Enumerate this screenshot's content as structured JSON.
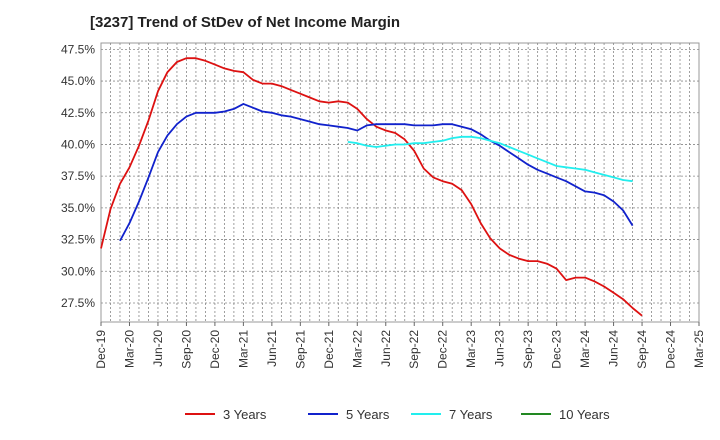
{
  "chart_data": {
    "type": "line",
    "title": "[3237]  Trend of StDev of Net Income Margin",
    "xlabel": "",
    "ylabel": "",
    "ylim": [
      26.0,
      48.0
    ],
    "yticks": [
      "47.5%",
      "45.0%",
      "42.5%",
      "40.0%",
      "37.5%",
      "35.0%",
      "32.5%",
      "30.0%",
      "27.5%"
    ],
    "x_tick_labels": [
      "Dec-19",
      "Mar-20",
      "Jun-20",
      "Sep-20",
      "Dec-20",
      "Mar-21",
      "Jun-21",
      "Sep-21",
      "Dec-21",
      "Mar-22",
      "Jun-22",
      "Sep-22",
      "Dec-22",
      "Mar-23",
      "Jun-23",
      "Sep-23",
      "Dec-23",
      "Mar-24",
      "Jun-24",
      "Sep-24",
      "Dec-24",
      "Mar-25"
    ],
    "grid": true,
    "legend_position": "bottom",
    "series": [
      {
        "name": "3 Years",
        "color": "#dd1111",
        "values": [
          [
            0,
            31.8
          ],
          [
            1,
            34.9
          ],
          [
            2,
            36.9
          ],
          [
            3,
            38.2
          ],
          [
            4,
            39.9
          ],
          [
            5,
            41.9
          ],
          [
            6,
            44.2
          ],
          [
            7,
            45.7
          ],
          [
            8,
            46.5
          ],
          [
            9,
            46.8
          ],
          [
            10,
            46.8
          ],
          [
            11,
            46.6
          ],
          [
            12,
            46.3
          ],
          [
            13,
            46.0
          ],
          [
            14,
            45.8
          ],
          [
            15,
            45.7
          ],
          [
            16,
            45.1
          ],
          [
            17,
            44.8
          ],
          [
            18,
            44.8
          ],
          [
            19,
            44.6
          ],
          [
            20,
            44.3
          ],
          [
            21,
            44.0
          ],
          [
            22,
            43.7
          ],
          [
            23,
            43.4
          ],
          [
            24,
            43.3
          ],
          [
            25,
            43.4
          ],
          [
            26,
            43.3
          ],
          [
            27,
            42.8
          ],
          [
            28,
            42.0
          ],
          [
            29,
            41.4
          ],
          [
            30,
            41.1
          ],
          [
            31,
            40.9
          ],
          [
            32,
            40.4
          ],
          [
            33,
            39.5
          ],
          [
            34,
            38.1
          ],
          [
            35,
            37.4
          ],
          [
            36,
            37.1
          ],
          [
            37,
            36.9
          ],
          [
            38,
            36.4
          ],
          [
            39,
            35.3
          ],
          [
            40,
            33.8
          ],
          [
            41,
            32.6
          ],
          [
            42,
            31.8
          ],
          [
            43,
            31.3
          ],
          [
            44,
            31.0
          ],
          [
            45,
            30.8
          ],
          [
            46,
            30.8
          ],
          [
            47,
            30.6
          ],
          [
            48,
            30.2
          ],
          [
            49,
            29.3
          ],
          [
            50,
            29.5
          ],
          [
            51,
            29.5
          ],
          [
            52,
            29.2
          ],
          [
            53,
            28.8
          ],
          [
            54,
            28.3
          ],
          [
            55,
            27.8
          ],
          [
            56,
            27.1
          ],
          [
            57,
            26.5
          ]
        ]
      },
      {
        "name": "5 Years",
        "color": "#1122cc",
        "values": [
          [
            2,
            32.4
          ],
          [
            3,
            33.8
          ],
          [
            4,
            35.5
          ],
          [
            5,
            37.4
          ],
          [
            6,
            39.4
          ],
          [
            7,
            40.7
          ],
          [
            8,
            41.6
          ],
          [
            9,
            42.2
          ],
          [
            10,
            42.5
          ],
          [
            11,
            42.5
          ],
          [
            12,
            42.5
          ],
          [
            13,
            42.6
          ],
          [
            14,
            42.8
          ],
          [
            15,
            43.2
          ],
          [
            16,
            42.9
          ],
          [
            17,
            42.6
          ],
          [
            18,
            42.5
          ],
          [
            19,
            42.3
          ],
          [
            20,
            42.2
          ],
          [
            21,
            42.0
          ],
          [
            22,
            41.8
          ],
          [
            23,
            41.6
          ],
          [
            24,
            41.5
          ],
          [
            25,
            41.4
          ],
          [
            26,
            41.3
          ],
          [
            27,
            41.1
          ],
          [
            28,
            41.5
          ],
          [
            29,
            41.6
          ],
          [
            30,
            41.6
          ],
          [
            31,
            41.6
          ],
          [
            32,
            41.6
          ],
          [
            33,
            41.5
          ],
          [
            34,
            41.5
          ],
          [
            35,
            41.5
          ],
          [
            36,
            41.6
          ],
          [
            37,
            41.6
          ],
          [
            38,
            41.4
          ],
          [
            39,
            41.2
          ],
          [
            40,
            40.8
          ],
          [
            41,
            40.3
          ],
          [
            42,
            39.9
          ],
          [
            43,
            39.4
          ],
          [
            44,
            38.9
          ],
          [
            45,
            38.4
          ],
          [
            46,
            38.0
          ],
          [
            47,
            37.7
          ],
          [
            48,
            37.4
          ],
          [
            49,
            37.1
          ],
          [
            50,
            36.7
          ],
          [
            51,
            36.3
          ],
          [
            52,
            36.2
          ],
          [
            53,
            36.0
          ],
          [
            54,
            35.5
          ],
          [
            55,
            34.8
          ],
          [
            56,
            33.6
          ]
        ]
      },
      {
        "name": "7 Years",
        "color": "#22eeee",
        "values": [
          [
            26,
            40.2
          ],
          [
            27,
            40.1
          ],
          [
            28,
            39.9
          ],
          [
            29,
            39.8
          ],
          [
            30,
            39.9
          ],
          [
            31,
            40.0
          ],
          [
            32,
            40.0
          ],
          [
            33,
            40.1
          ],
          [
            34,
            40.1
          ],
          [
            35,
            40.2
          ],
          [
            36,
            40.3
          ],
          [
            37,
            40.5
          ],
          [
            38,
            40.6
          ],
          [
            39,
            40.6
          ],
          [
            40,
            40.5
          ],
          [
            41,
            40.3
          ],
          [
            42,
            40.1
          ],
          [
            43,
            39.8
          ],
          [
            44,
            39.5
          ],
          [
            45,
            39.2
          ],
          [
            46,
            38.9
          ],
          [
            47,
            38.6
          ],
          [
            48,
            38.3
          ],
          [
            49,
            38.2
          ],
          [
            50,
            38.1
          ],
          [
            51,
            38.0
          ],
          [
            52,
            37.8
          ],
          [
            53,
            37.6
          ],
          [
            54,
            37.4
          ],
          [
            55,
            37.2
          ],
          [
            56,
            37.1
          ]
        ]
      },
      {
        "name": "10 Years",
        "color": "#228822",
        "values": []
      }
    ]
  }
}
